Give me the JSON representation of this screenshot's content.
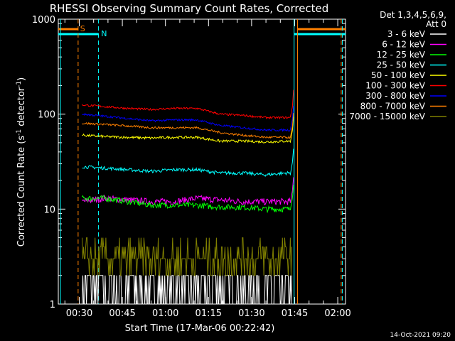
{
  "chart_data": {
    "type": "line",
    "title": "RHESSI Observing Summary Count Rates, Corrected",
    "xlabel": "Start Time (17-Mar-06 00:22:42)",
    "ylabel_main": "Corrected Count Rate (s",
    "ylabel_sup1": "-1",
    "ylabel_mid": " detector",
    "ylabel_sup2": "-1",
    "ylabel_end": ")",
    "y_scale": "log",
    "ylim": [
      1,
      1000
    ],
    "xlim_minutes": [
      22.7,
      122.7
    ],
    "x_ticks": [
      {
        "label": "00:30",
        "min": 30
      },
      {
        "label": "00:45",
        "min": 45
      },
      {
        "label": "01:00",
        "min": 60
      },
      {
        "label": "01:15",
        "min": 75
      },
      {
        "label": "01:30",
        "min": 90
      },
      {
        "label": "01:45",
        "min": 105
      },
      {
        "label": "02:00",
        "min": 120
      }
    ],
    "y_ticks": [
      {
        "label": "1",
        "value": 1
      },
      {
        "label": "10",
        "value": 10
      },
      {
        "label": "100",
        "value": 100
      },
      {
        "label": "1000",
        "value": 1000
      }
    ],
    "legend": {
      "header1": "Det 1,3,4,5,6,9,",
      "header2": "Att 0",
      "placement": "right"
    },
    "series": [
      {
        "name": "3 - 6 keV",
        "color": "#ffffff",
        "values": [
          1.5,
          1.5,
          1.5,
          1.4,
          1.5,
          1.5,
          1.6,
          1.5,
          1.4,
          1.5
        ]
      },
      {
        "name": "6 - 12 keV",
        "color": "#ff00ff",
        "values": [
          12,
          13,
          12.5,
          12,
          12,
          13,
          12.5,
          12,
          12,
          12
        ]
      },
      {
        "name": "12 - 25 keV",
        "color": "#00ff00",
        "values": [
          13,
          13,
          12,
          11,
          11,
          11,
          10.5,
          10.5,
          10,
          10
        ]
      },
      {
        "name": "25 - 50 keV",
        "color": "#00ffff",
        "values": [
          28,
          27,
          26,
          25,
          26,
          26,
          24,
          24,
          23,
          24
        ]
      },
      {
        "name": "50 - 100 keV",
        "color": "#ffff00",
        "values": [
          60,
          58,
          57,
          56,
          57,
          57,
          52,
          52,
          51,
          52
        ]
      },
      {
        "name": "100 - 300 keV",
        "color": "#ff0000",
        "values": [
          125,
          120,
          115,
          112,
          115,
          115,
          100,
          97,
          92,
          92
        ]
      },
      {
        "name": "300 - 800 keV",
        "color": "#0000ff",
        "values": [
          100,
          95,
          90,
          85,
          87,
          87,
          76,
          72,
          68,
          68
        ]
      },
      {
        "name": "800 - 7000 keV",
        "color": "#ff8000",
        "values": [
          80,
          78,
          75,
          72,
          72,
          72,
          64,
          60,
          57,
          57
        ]
      },
      {
        "name": "7000 - 15000 keV",
        "color": "#808000",
        "values": [
          3,
          2.5,
          2.5,
          3,
          3.5,
          4.5,
          3,
          2.5,
          3,
          2.5
        ]
      }
    ],
    "x_minutes": [
      31,
      39,
      47,
      55,
      63,
      71,
      79,
      87,
      95,
      102
    ],
    "flags": {
      "saa_label": "S",
      "night_label": "N"
    },
    "timestamp": "14-Oct-2021 09:20"
  }
}
